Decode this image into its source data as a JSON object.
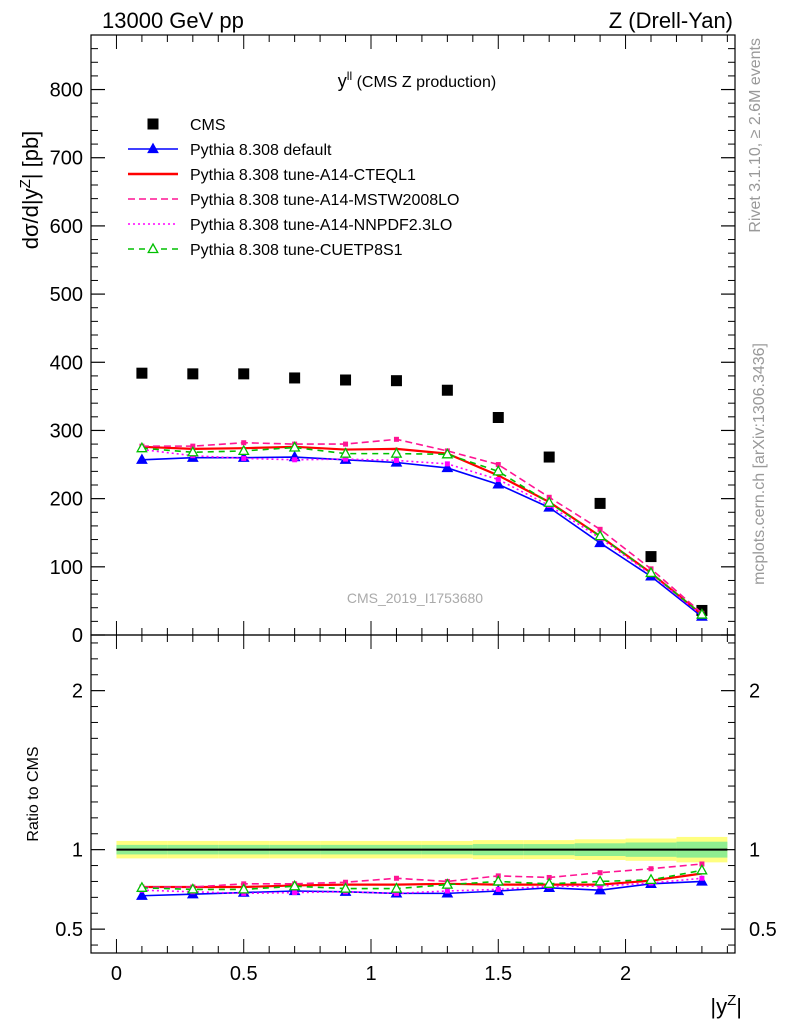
{
  "header": {
    "left": "13000 GeV pp",
    "right": "Z (Drell-Yan)"
  },
  "side_labels": {
    "rivet": "Rivet 3.1.10, ≥ 2.6M events",
    "site": "mcplots.cern.ch [arXiv:1306.3436]"
  },
  "watermark": "CMS_2019_I1753680",
  "chart_data": [
    {
      "type": "scatter",
      "panel": "main",
      "title_main": "y",
      "title_sup": "ll",
      "title_rest": " (CMS Z production)",
      "ylabel": "dσ/d|y",
      "ylabel_sup": "Z",
      "ylabel_rest": "| [pb]",
      "ylim": [
        0,
        880
      ],
      "yticks": [
        0,
        100,
        200,
        300,
        400,
        500,
        600,
        700,
        800
      ],
      "yticklabels": [
        "0",
        "100",
        "200",
        "300",
        "400",
        "500",
        "600",
        "700",
        "800"
      ],
      "x": [
        0.1,
        0.3,
        0.5,
        0.7,
        0.9,
        1.1,
        1.3,
        1.5,
        1.7,
        1.9,
        2.1,
        2.3
      ],
      "legend_position": "top-left",
      "series": [
        {
          "name": "CMS",
          "style": "data",
          "color": "#000000",
          "values": [
            384,
            383,
            383,
            377,
            374,
            373,
            359,
            319,
            261,
            193,
            115,
            36
          ]
        },
        {
          "name": "Pythia 8.308 default",
          "style": "line-triangle",
          "color": "#0000ff",
          "values": [
            257,
            260,
            260,
            261,
            257,
            253,
            245,
            221,
            187,
            135,
            86,
            27
          ]
        },
        {
          "name": "Pythia 8.308 tune-A14-CTEQL1",
          "style": "solid",
          "color": "#ff0000",
          "values": [
            276,
            273,
            274,
            276,
            272,
            273,
            266,
            234,
            195,
            145,
            91,
            30
          ]
        },
        {
          "name": "Pythia 8.308 tune-A14-MSTW2008LO",
          "style": "dashed",
          "color": "#ff1493",
          "values": [
            277,
            277,
            282,
            280,
            280,
            287,
            270,
            250,
            202,
            155,
            97,
            32
          ]
        },
        {
          "name": "Pythia 8.308 tune-A14-NNPDF2.3LO",
          "style": "dotted",
          "color": "#ff00ff",
          "values": [
            272,
            263,
            259,
            257,
            258,
            256,
            251,
            228,
            190,
            142,
            89,
            29
          ]
        },
        {
          "name": "Pythia 8.308 tune-CUETP8S1",
          "style": "dashed-open-triangle",
          "color": "#00c000",
          "values": [
            274,
            268,
            270,
            275,
            266,
            266,
            265,
            240,
            194,
            145,
            91,
            30
          ]
        }
      ]
    },
    {
      "type": "line",
      "panel": "ratio",
      "ylabel": "Ratio to CMS",
      "xlabel": "|y",
      "xlabel_sup": "Z",
      "xlabel_rest": "|",
      "ylim": [
        0.35,
        2.35
      ],
      "yticks": [
        0.5,
        1,
        2
      ],
      "yticklabels": [
        "0.5",
        "1",
        "2"
      ],
      "xlim": [
        -0.1,
        2.43
      ],
      "xticks": [
        0,
        0.5,
        1,
        1.5,
        2
      ],
      "xticklabels": [
        "0",
        "0.5",
        "1",
        "1.5",
        "2"
      ],
      "x": [
        0.1,
        0.3,
        0.5,
        0.7,
        0.9,
        1.1,
        1.3,
        1.5,
        1.7,
        1.9,
        2.1,
        2.3
      ],
      "band_outer": [
        0.055,
        0.055,
        0.055,
        0.055,
        0.055,
        0.055,
        0.055,
        0.06,
        0.06,
        0.065,
        0.07,
        0.08
      ],
      "band_inner": [
        0.03,
        0.03,
        0.03,
        0.03,
        0.03,
        0.03,
        0.03,
        0.035,
        0.035,
        0.04,
        0.045,
        0.05
      ],
      "series": [
        {
          "name": "Pythia 8.308 default",
          "style": "line-triangle",
          "color": "#0000ff",
          "values": [
            0.71,
            0.72,
            0.73,
            0.74,
            0.735,
            0.725,
            0.725,
            0.74,
            0.76,
            0.745,
            0.785,
            0.8
          ]
        },
        {
          "name": "Pythia 8.308 tune-A14-CTEQL1",
          "style": "solid",
          "color": "#ff0000",
          "values": [
            0.765,
            0.765,
            0.765,
            0.775,
            0.78,
            0.78,
            0.785,
            0.78,
            0.78,
            0.78,
            0.805,
            0.85
          ]
        },
        {
          "name": "Pythia 8.308 tune-A14-MSTW2008LO",
          "style": "dashed",
          "color": "#ff1493",
          "values": [
            0.765,
            0.765,
            0.785,
            0.785,
            0.795,
            0.82,
            0.8,
            0.835,
            0.825,
            0.855,
            0.88,
            0.91
          ]
        },
        {
          "name": "Pythia 8.308 tune-A14-NNPDF2.3LO",
          "style": "dotted",
          "color": "#ff00ff",
          "values": [
            0.745,
            0.735,
            0.725,
            0.73,
            0.735,
            0.725,
            0.74,
            0.75,
            0.77,
            0.77,
            0.79,
            0.82
          ]
        },
        {
          "name": "Pythia 8.308 tune-CUETP8S1",
          "style": "dashed-open-triangle",
          "color": "#00c000",
          "values": [
            0.76,
            0.75,
            0.75,
            0.77,
            0.755,
            0.755,
            0.78,
            0.8,
            0.785,
            0.8,
            0.81,
            0.87
          ]
        }
      ]
    }
  ]
}
